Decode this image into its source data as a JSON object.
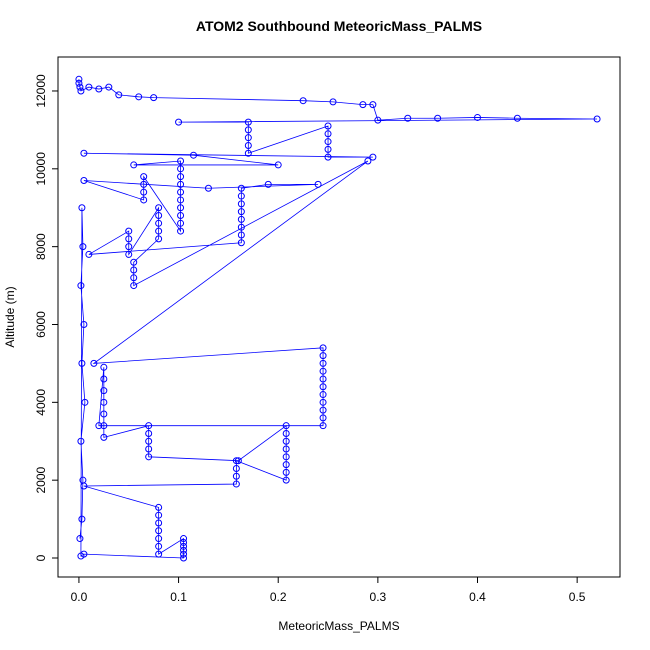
{
  "chart_data": {
    "type": "line",
    "title": "ATOM2 Southbound MeteoricMass_PALMS",
    "x_label": "MeteoricMass_PALMS",
    "y_label": "Altitude (m)",
    "xlim": [
      -0.021,
      0.543
    ],
    "ylim": [
      -488,
      12873
    ],
    "xticks": [
      {
        "value": 0,
        "label": "0.0"
      },
      0.1,
      0.2,
      0.3,
      0.4,
      0.5
    ],
    "yticks": [
      0,
      2000,
      4000,
      6000,
      8000,
      10000,
      12000
    ],
    "x": [
      0,
      0,
      0.001,
      0.002,
      0.01,
      0.02,
      0.03,
      0.04,
      0.06,
      0.075,
      0.225,
      0.255,
      0.285,
      0.295,
      0.3,
      0.33,
      0.36,
      0.4,
      0.44,
      0.52,
      0.1,
      0.17,
      0.17,
      0.17,
      0.17,
      0.17,
      0.25,
      0.25,
      0.25,
      0.25,
      0.25,
      0.295,
      0.005,
      0.115,
      0.2,
      0.055,
      0.102,
      0.102,
      0.102,
      0.102,
      0.102,
      0.102,
      0.102,
      0.102,
      0.102,
      0.102,
      0.065,
      0.065,
      0.065,
      0.065,
      0.005,
      0.13,
      0.24,
      0.19,
      0.163,
      0.163,
      0.163,
      0.163,
      0.163,
      0.163,
      0.163,
      0.163,
      0.01,
      0.05,
      0.05,
      0.05,
      0.05,
      0.08,
      0.08,
      0.08,
      0.08,
      0.08,
      0.055,
      0.055,
      0.055,
      0.055,
      0.29,
      0.015,
      0.245,
      0.245,
      0.245,
      0.245,
      0.245,
      0.245,
      0.245,
      0.245,
      0.245,
      0.245,
      0.245,
      0.02,
      0.025,
      0.025,
      0.025,
      0.025,
      0.025,
      0.025,
      0.025,
      0.07,
      0.07,
      0.07,
      0.07,
      0.07,
      0.16,
      0.208,
      0.208,
      0.208,
      0.208,
      0.208,
      0.208,
      0.208,
      0.208,
      0.158,
      0.158,
      0.158,
      0.158,
      0.005,
      0.08,
      0.08,
      0.08,
      0.08,
      0.08,
      0.08,
      0.08,
      0.105,
      0.105,
      0.105,
      0.105,
      0.105,
      0.105,
      0.005,
      0.002,
      0.003,
      0.004,
      0.002,
      0.005,
      0.003,
      0.006,
      0.002,
      0.004,
      0.003,
      0.001
    ],
    "series": [
      {
        "name": "MeteoricMass_PALMS",
        "color": "#0000ff",
        "values": [
          12300,
          12200,
          12100,
          12000,
          12100,
          12050,
          12100,
          11900,
          11850,
          11830,
          11750,
          11720,
          11650,
          11650,
          11250,
          11300,
          11300,
          11320,
          11300,
          11280,
          11200,
          11200,
          11000,
          10800,
          10600,
          10400,
          11100,
          10900,
          10700,
          10500,
          10300,
          10300,
          10400,
          10350,
          10100,
          10100,
          10200,
          10000,
          9800,
          9600,
          9400,
          9200,
          9000,
          8800,
          8600,
          8400,
          9800,
          9600,
          9400,
          9200,
          9700,
          9500,
          9600,
          9600,
          9500,
          9300,
          9100,
          8900,
          8700,
          8500,
          8300,
          8100,
          7800,
          8400,
          8200,
          8000,
          7800,
          9000,
          8800,
          8600,
          8400,
          8200,
          7600,
          7400,
          7200,
          7000,
          10200,
          5000,
          5400,
          5200,
          5000,
          4800,
          4600,
          4400,
          4200,
          4000,
          3800,
          3600,
          3400,
          3400,
          4900,
          4600,
          4300,
          4000,
          3700,
          3400,
          3100,
          3400,
          3200,
          3000,
          2800,
          2600,
          2500,
          3400,
          3200,
          3000,
          2800,
          2600,
          2400,
          2200,
          2000,
          2500,
          2300,
          2100,
          1900,
          1850,
          1300,
          1100,
          900,
          700,
          500,
          300,
          100,
          500,
          400,
          300,
          200,
          100,
          0,
          100,
          50,
          9000,
          8000,
          7000,
          6000,
          5000,
          4000,
          3000,
          2000,
          1000,
          500
        ]
      }
    ]
  }
}
